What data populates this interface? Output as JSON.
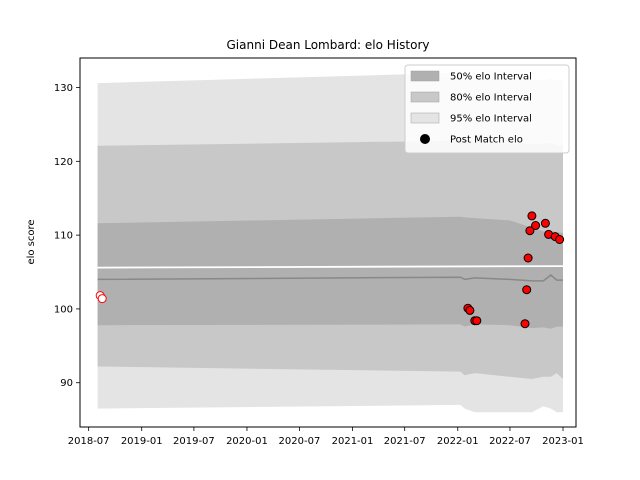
{
  "chart_data": {
    "type": "scatter",
    "title": "Gianni Dean Lombard: elo History",
    "xlabel": "",
    "ylabel": "elo score",
    "xlim": [
      "2018-06-01",
      "2023-02-15"
    ],
    "ylim": [
      84,
      134
    ],
    "x_ticks": [
      "2018-07",
      "2019-01",
      "2019-07",
      "2020-01",
      "2020-07",
      "2021-01",
      "2021-07",
      "2022-01",
      "2022-07",
      "2023-01"
    ],
    "y_ticks": [
      90,
      100,
      110,
      120,
      130
    ],
    "grid": false,
    "legend_position": "top-right",
    "legend": [
      {
        "label": "50% elo Interval",
        "color": "#b0b0b0",
        "kind": "patch"
      },
      {
        "label": "80% elo Interval",
        "color": "#c8c8c8",
        "kind": "patch"
      },
      {
        "label": "95% elo Interval",
        "color": "#e4e4e4",
        "kind": "patch"
      },
      {
        "label": "Post Match elo",
        "color": "#000000",
        "kind": "marker"
      }
    ],
    "bands": {
      "x": [
        "2018-08-01",
        "2022-01-10",
        "2022-01-25",
        "2022-03-01",
        "2022-07-01",
        "2022-09-15",
        "2022-10-25",
        "2022-11-20",
        "2022-12-10",
        "2023-01-01"
      ],
      "p95_upper": [
        130.6,
        132.0,
        132.0,
        131.5,
        131.0,
        131.0,
        131.0,
        131.2,
        131.0,
        131.0
      ],
      "p95_lower": [
        86.5,
        87.0,
        86.5,
        86.0,
        86.0,
        86.0,
        86.8,
        86.5,
        86.0,
        86.0
      ],
      "p80_upper": [
        122.1,
        122.8,
        122.7,
        122.6,
        122.4,
        122.4,
        122.4,
        122.5,
        122.2,
        122.2
      ],
      "p80_lower": [
        92.2,
        91.5,
        91.0,
        91.3,
        90.8,
        90.5,
        90.8,
        90.8,
        91.3,
        90.5
      ],
      "p50_upper": [
        111.6,
        112.5,
        112.4,
        112.3,
        112.0,
        111.0,
        110.5,
        110.6,
        110.4,
        110.3
      ],
      "p50_lower": [
        97.8,
        97.9,
        97.6,
        97.9,
        97.8,
        97.4,
        97.5,
        97.3,
        97.6,
        97.6
      ]
    },
    "mean_line": {
      "color": "#888888",
      "x": [
        "2018-08-01",
        "2022-01-10",
        "2022-01-25",
        "2022-03-01",
        "2022-07-01",
        "2022-09-15",
        "2022-10-25",
        "2022-11-20",
        "2022-12-10",
        "2023-01-01"
      ],
      "y": [
        104.0,
        104.3,
        104.0,
        104.2,
        104.0,
        103.8,
        103.8,
        104.6,
        103.9,
        103.9
      ]
    },
    "reference_line": {
      "color": "#ffffff",
      "x": [
        "2018-08-01",
        "2023-01-01"
      ],
      "y": [
        105.6,
        105.8
      ]
    },
    "series": [
      {
        "marker": "hollow",
        "color": "#ff0000",
        "points": [
          {
            "x": "2018-08-10",
            "y": 101.8
          },
          {
            "x": "2018-08-17",
            "y": 101.4
          }
        ]
      },
      {
        "marker": "filled",
        "color": "#ff0000",
        "points": [
          {
            "x": "2022-02-05",
            "y": 100.1
          },
          {
            "x": "2022-02-12",
            "y": 99.8
          },
          {
            "x": "2022-03-01",
            "y": 98.4
          },
          {
            "x": "2022-03-08",
            "y": 98.4
          },
          {
            "x": "2022-08-22",
            "y": 98.0
          },
          {
            "x": "2022-08-28",
            "y": 102.6
          },
          {
            "x": "2022-09-02",
            "y": 106.9
          },
          {
            "x": "2022-09-08",
            "y": 110.6
          },
          {
            "x": "2022-09-15",
            "y": 112.6
          },
          {
            "x": "2022-09-28",
            "y": 111.3
          },
          {
            "x": "2022-11-01",
            "y": 111.6
          },
          {
            "x": "2022-11-12",
            "y": 110.1
          },
          {
            "x": "2022-12-05",
            "y": 109.8
          },
          {
            "x": "2022-12-20",
            "y": 109.4
          }
        ]
      }
    ]
  }
}
